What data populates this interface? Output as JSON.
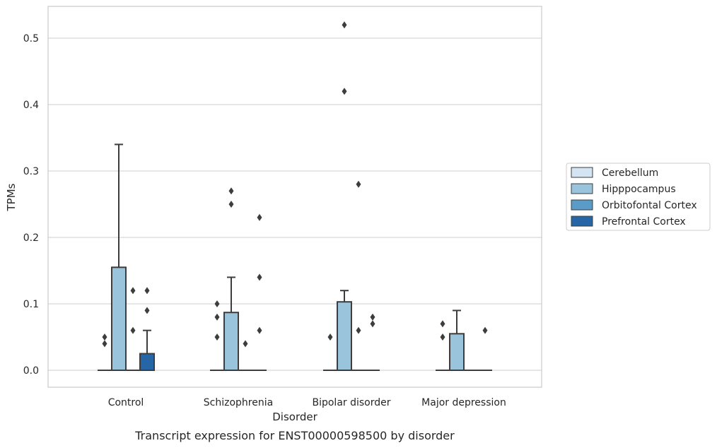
{
  "chart_data": {
    "type": "box",
    "xlabel": "Disorder",
    "ylabel": "TPMs",
    "caption": "Transcript expression for ENST00000598500 by disorder",
    "ylim": [
      -0.026,
      0.548
    ],
    "yticks": [
      "0.0",
      "0.1",
      "0.2",
      "0.3",
      "0.4",
      "0.5"
    ],
    "grid": true,
    "legend_position": "right",
    "categories": [
      "Control",
      "Schizophrenia",
      "Bipolar disorder",
      "Major depression"
    ],
    "series": [
      {
        "name": "Cerebellum",
        "color": "#d4e4f2",
        "boxes": [
          {
            "q1": 0,
            "median": 0,
            "q3": 0,
            "whisker_low": 0,
            "whisker_high": 0,
            "outliers": [
              0.04,
              0.05
            ]
          },
          {
            "q1": 0,
            "median": 0,
            "q3": 0,
            "whisker_low": 0,
            "whisker_high": 0,
            "outliers": [
              0.05,
              0.08,
              0.1
            ]
          },
          {
            "q1": 0,
            "median": 0,
            "q3": 0,
            "whisker_low": 0,
            "whisker_high": 0,
            "outliers": [
              0.05
            ]
          },
          {
            "q1": 0,
            "median": 0,
            "q3": 0,
            "whisker_low": 0,
            "whisker_high": 0,
            "outliers": [
              0.05,
              0.07
            ]
          }
        ]
      },
      {
        "name": "Hipppocampus",
        "color": "#9ac3dc",
        "boxes": [
          {
            "q1": 0,
            "median": 0,
            "q3": 0.155,
            "whisker_low": 0,
            "whisker_high": 0.34,
            "outliers": []
          },
          {
            "q1": 0,
            "median": 0,
            "q3": 0.087,
            "whisker_low": 0,
            "whisker_high": 0.14,
            "outliers": [
              0.25,
              0.27
            ]
          },
          {
            "q1": 0,
            "median": 0,
            "q3": 0.103,
            "whisker_low": 0,
            "whisker_high": 0.12,
            "outliers": [
              0.42,
              0.52
            ]
          },
          {
            "q1": 0,
            "median": 0,
            "q3": 0.055,
            "whisker_low": 0,
            "whisker_high": 0.09,
            "outliers": []
          }
        ]
      },
      {
        "name": "Orbitofontal Cortex",
        "color": "#5a9bc8",
        "boxes": [
          {
            "q1": 0,
            "median": 0,
            "q3": 0,
            "whisker_low": 0,
            "whisker_high": 0,
            "outliers": [
              0.06,
              0.12
            ]
          },
          {
            "q1": 0,
            "median": 0,
            "q3": 0,
            "whisker_low": 0,
            "whisker_high": 0,
            "outliers": [
              0.04
            ]
          },
          {
            "q1": 0,
            "median": 0,
            "q3": 0,
            "whisker_low": 0,
            "whisker_high": 0,
            "outliers": [
              0.06,
              0.28
            ]
          },
          {
            "q1": 0,
            "median": 0,
            "q3": 0,
            "whisker_low": 0,
            "whisker_high": 0,
            "outliers": []
          }
        ]
      },
      {
        "name": "Prefrontal Cortex",
        "color": "#2766a6",
        "boxes": [
          {
            "q1": 0,
            "median": 0,
            "q3": 0.025,
            "whisker_low": 0,
            "whisker_high": 0.06,
            "outliers": [
              0.09,
              0.12
            ]
          },
          {
            "q1": 0,
            "median": 0,
            "q3": 0,
            "whisker_low": 0,
            "whisker_high": 0,
            "outliers": [
              0.06,
              0.14,
              0.23
            ]
          },
          {
            "q1": 0,
            "median": 0,
            "q3": 0,
            "whisker_low": 0,
            "whisker_high": 0,
            "outliers": [
              0.07,
              0.08
            ]
          },
          {
            "q1": 0,
            "median": 0,
            "q3": 0,
            "whisker_low": 0,
            "whisker_high": 0,
            "outliers": [
              0.06
            ]
          }
        ]
      }
    ],
    "colors": {
      "box_edge": "#3d3d3d",
      "grid": "#cccccc",
      "frame": "#cccccc",
      "outlier": "#3d3d3d"
    }
  }
}
